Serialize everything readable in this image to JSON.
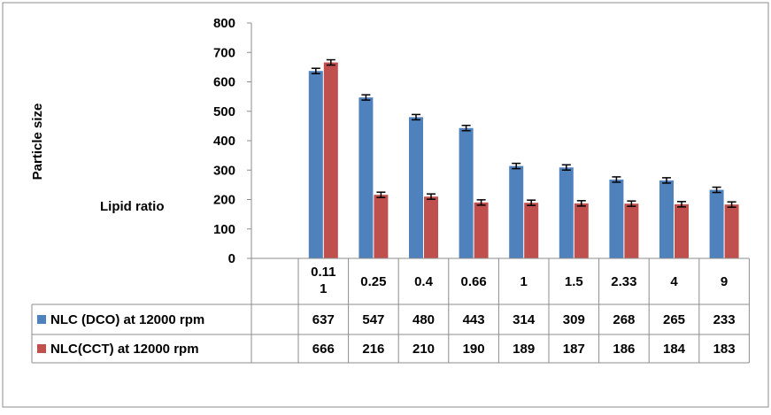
{
  "chart_data": {
    "type": "bar",
    "ylabel": "Particle size",
    "xlabel": "Lipid ratio",
    "ylim": [
      0,
      800
    ],
    "yticks": [
      0,
      100,
      200,
      300,
      400,
      500,
      600,
      700,
      800
    ],
    "categories": [
      "0.11\n1",
      "0.25",
      "0.4",
      "0.66",
      "1",
      "1.5",
      "2.33",
      "4",
      "9"
    ],
    "grid": false,
    "legend": "table-left",
    "data_table": true,
    "error_bars": true,
    "series": [
      {
        "name": "NLC (DCO) at 12000 rpm",
        "color": "#4F81BD",
        "values": [
          637,
          547,
          480,
          443,
          314,
          309,
          268,
          265,
          233
        ]
      },
      {
        "name": "NLC(CCT) at 12000 rpm",
        "color": "#C0504D",
        "values": [
          666,
          216,
          210,
          190,
          189,
          187,
          186,
          184,
          183
        ]
      }
    ]
  }
}
